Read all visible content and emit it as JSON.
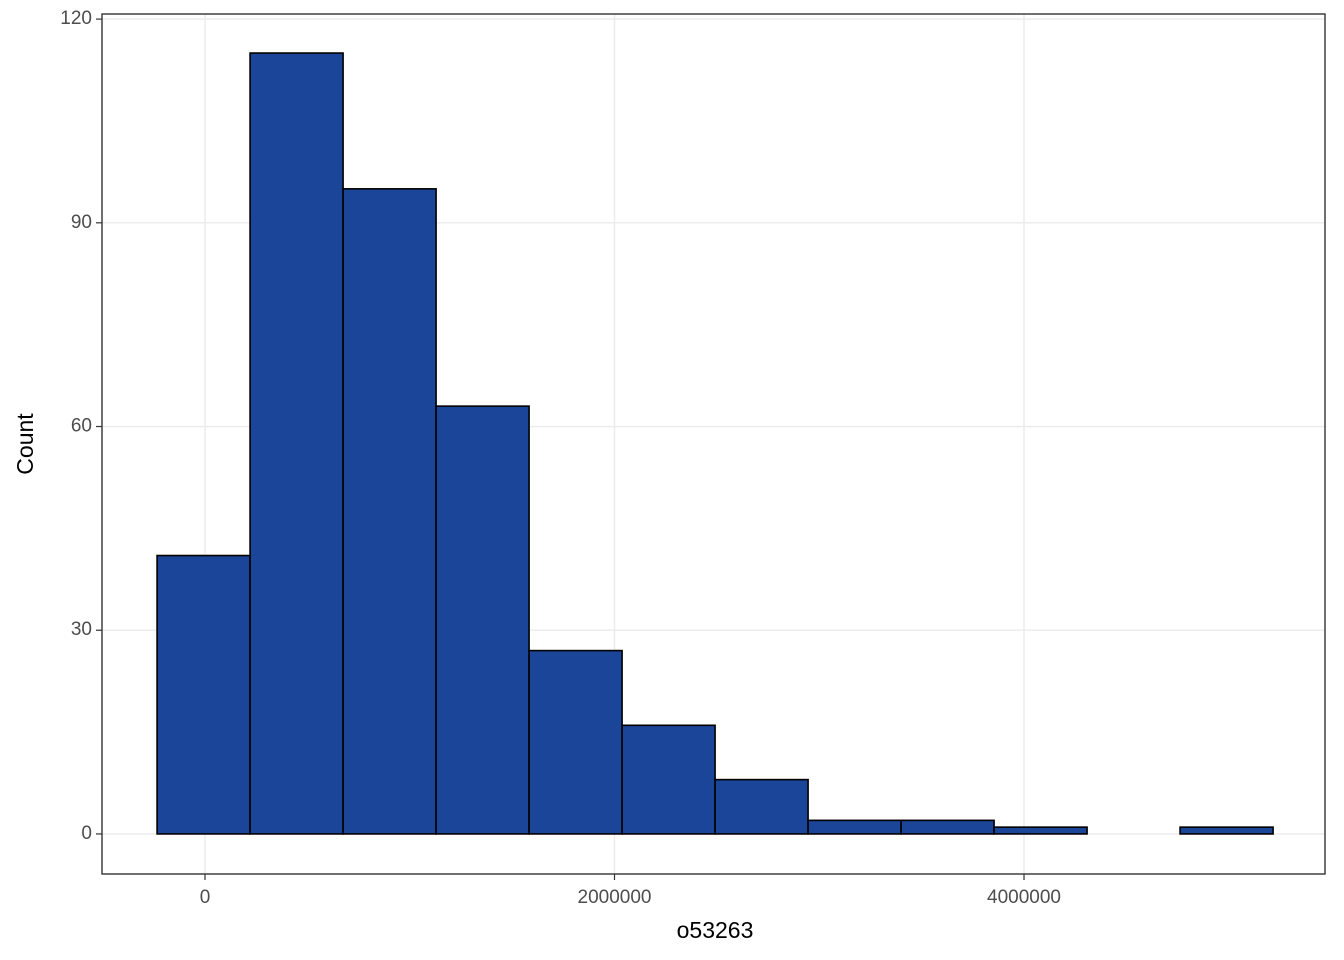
{
  "chart_data": {
    "type": "histogram",
    "x_label": "o53263",
    "y_label": "Count",
    "bins": [
      -234000,
      220200,
      674400,
      1128600,
      1582800,
      2037000,
      2491200,
      2945400,
      3399600,
      3853800,
      4308000,
      4762200,
      5216400
    ],
    "values": [
      41,
      115,
      95,
      63,
      27,
      16,
      8,
      2,
      2,
      1,
      0,
      1
    ],
    "color": "#1a4599",
    "edge_color": "#000000",
    "xlim": [
      -503000,
      5470000
    ],
    "xticks": [
      0,
      2000000,
      4000000
    ],
    "ylim": [
      -5.9,
      120.75
    ],
    "yticks": [
      0,
      30,
      60,
      90,
      120
    ],
    "grid": true
  }
}
